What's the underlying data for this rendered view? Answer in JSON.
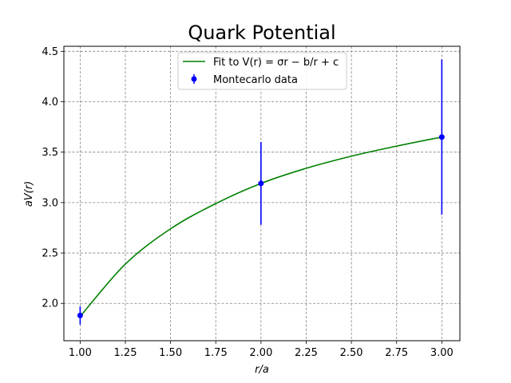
{
  "chart_data": {
    "type": "line",
    "title": "Quark Potential",
    "xlabel": "r/a",
    "ylabel": "aV(r)",
    "xlim": [
      0.91,
      3.1
    ],
    "ylim": [
      1.63,
      4.55
    ],
    "xticks": [
      1.0,
      1.25,
      1.5,
      1.75,
      2.0,
      2.25,
      2.5,
      2.75,
      3.0
    ],
    "xtick_labels": [
      "1.00",
      "1.25",
      "1.50",
      "1.75",
      "2.00",
      "2.25",
      "2.50",
      "2.75",
      "3.00"
    ],
    "yticks": [
      2.0,
      2.5,
      3.0,
      3.5,
      4.0,
      4.5
    ],
    "ytick_labels": [
      "2.0",
      "2.5",
      "3.0",
      "3.5",
      "4.0",
      "4.5"
    ],
    "grid": true,
    "legend_position": "top-center",
    "series": [
      {
        "name": "Fit to V(r) = σr − b/r + c",
        "kind": "line",
        "color": "#008000",
        "x": [
          1.0,
          1.25,
          1.5,
          1.75,
          2.0,
          2.25,
          2.5,
          2.75,
          3.0
        ],
        "y": [
          1.87,
          2.39,
          2.74,
          2.99,
          3.19,
          3.34,
          3.46,
          3.56,
          3.65
        ]
      },
      {
        "name": "Montecarlo data",
        "kind": "errorbar",
        "color": "#0000ff",
        "x": [
          1.0,
          2.0,
          3.0
        ],
        "y": [
          1.88,
          3.19,
          3.65
        ],
        "yerr": [
          0.09,
          0.41,
          0.77
        ]
      }
    ]
  }
}
